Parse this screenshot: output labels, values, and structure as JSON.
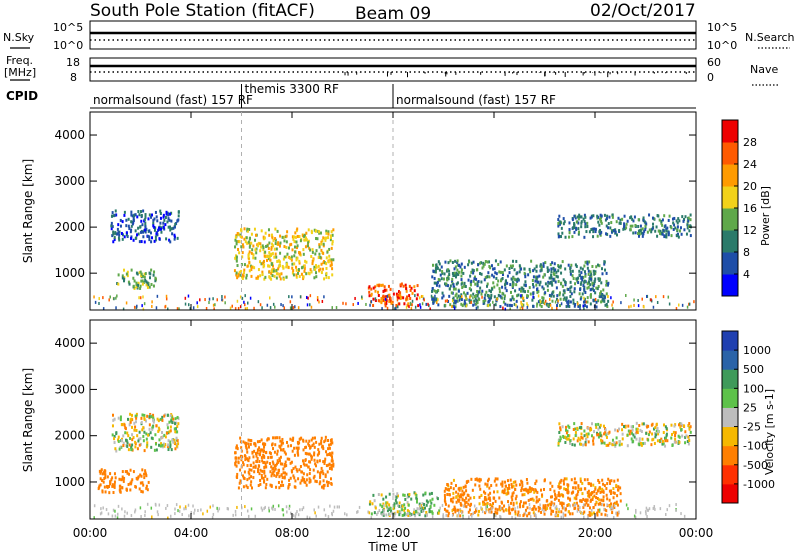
{
  "header": {
    "station": "South Pole Station (fitACF)",
    "beam": "Beam 09",
    "date": "02/Oct/2017"
  },
  "strip_labels": {
    "nsky": "N.Sky",
    "nsky_ticks": [
      "10^5",
      "10^0"
    ],
    "nsearch": "N.Search",
    "freq_line1": "Freq.",
    "freq_line2": "[MHz]",
    "freq_ticks": [
      "18",
      "8"
    ],
    "nave": "Nave",
    "nave_ticks": [
      "60",
      "0"
    ],
    "cpid": "CPID"
  },
  "cpid_segments": [
    {
      "label": "normalsound (fast) 157 RF",
      "start_hour": 0,
      "end_hour": 6.0
    },
    {
      "label": "themis 3300 RF",
      "start_hour": 6.0,
      "end_hour": 12.0
    },
    {
      "label": "normalsound (fast) 157 RF",
      "start_hour": 12.0,
      "end_hour": 24.0
    }
  ],
  "chart_data": [
    {
      "type": "heatmap",
      "name": "power-panel",
      "xlabel": "",
      "ylabel": "Slant Range [km]",
      "xlim": [
        0,
        24
      ],
      "ylim": [
        200,
        4500
      ],
      "y_ticks": [
        1000,
        2000,
        3000,
        4000
      ],
      "colorbar": {
        "label": "Power [dB]",
        "range": [
          0,
          32
        ],
        "ticks": [
          4,
          8,
          12,
          16,
          20,
          24,
          28
        ],
        "colors": [
          "#0000ff",
          "#1e4ea8",
          "#2a7a6a",
          "#5fa84a",
          "#f2d21a",
          "#ff9b00",
          "#ff5a00",
          "#ee0000"
        ]
      },
      "echo_regions": [
        {
          "start_hour": 0.8,
          "end_hour": 3.5,
          "range_min": 1700,
          "range_max": 2400,
          "level": 7
        },
        {
          "start_hour": 1.0,
          "end_hour": 2.6,
          "range_min": 700,
          "range_max": 1100,
          "level": 14
        },
        {
          "start_hour": 5.7,
          "end_hour": 9.6,
          "range_min": 900,
          "range_max": 2000,
          "level": 18
        },
        {
          "start_hour": 11.0,
          "end_hour": 13.0,
          "range_min": 300,
          "range_max": 800,
          "level": 26
        },
        {
          "start_hour": 13.5,
          "end_hour": 20.5,
          "range_min": 300,
          "range_max": 1300,
          "level": 10
        },
        {
          "start_hour": 18.5,
          "end_hour": 23.8,
          "range_min": 1800,
          "range_max": 2300,
          "level": 9
        }
      ]
    },
    {
      "type": "heatmap",
      "name": "velocity-panel",
      "xlabel": "Time UT",
      "ylabel": "Slant Range [km]",
      "xlim": [
        0,
        24
      ],
      "ylim": [
        200,
        4500
      ],
      "x_ticks": [
        "00:00",
        "04:00",
        "08:00",
        "12:00",
        "16:00",
        "20:00",
        "00:00"
      ],
      "y_ticks": [
        1000,
        2000,
        3000,
        4000
      ],
      "colorbar": {
        "label": "Velocity [m s-1]",
        "ticks": [
          "1000",
          "500",
          "100",
          "25",
          "-25",
          "-100",
          "-500",
          "-1000"
        ],
        "colors": [
          "#1f3fb0",
          "#2a63a8",
          "#3f9a5a",
          "#5ec24a",
          "#bdbdbd",
          "#f5b800",
          "#ff7f00",
          "#ff3000",
          "#ee0000"
        ]
      },
      "echo_regions": [
        {
          "start_hour": 0.8,
          "end_hour": 3.5,
          "range_min": 1700,
          "range_max": 2500,
          "velocity": 0
        },
        {
          "start_hour": 0.3,
          "end_hour": 2.3,
          "range_min": 800,
          "range_max": 1300,
          "velocity": -300
        },
        {
          "start_hour": 5.7,
          "end_hour": 9.6,
          "range_min": 900,
          "range_max": 2000,
          "velocity": -300
        },
        {
          "start_hour": 11.0,
          "end_hour": 13.8,
          "range_min": 300,
          "range_max": 800,
          "velocity": 80
        },
        {
          "start_hour": 14.0,
          "end_hour": 21.0,
          "range_min": 300,
          "range_max": 1100,
          "velocity": -200
        },
        {
          "start_hour": 18.5,
          "end_hour": 23.8,
          "range_min": 1800,
          "range_max": 2300,
          "velocity": 0
        }
      ]
    }
  ]
}
